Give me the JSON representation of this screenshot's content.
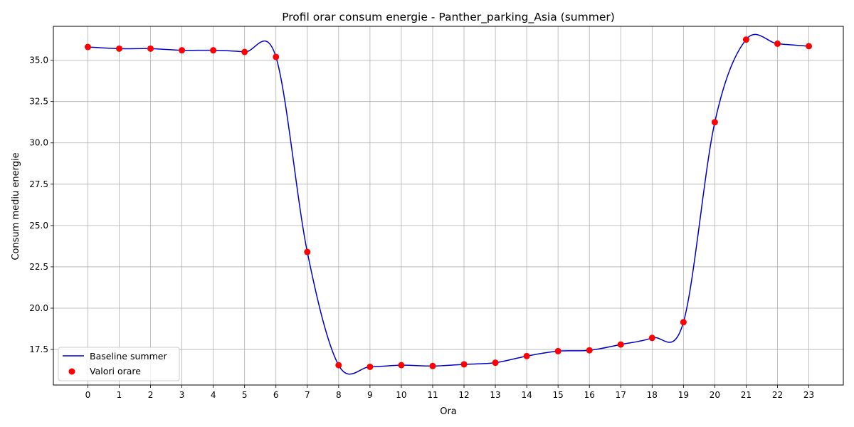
{
  "chart_data": {
    "type": "line",
    "title": "Profil orar consum energie - Panther_parking_Asia (summer)",
    "xlabel": "Ora",
    "ylabel": "Consum mediu energie",
    "xlim": [
      -1.1,
      24.1
    ],
    "ylim": [
      15.35,
      37.05
    ],
    "x_ticks": [
      0,
      1,
      2,
      3,
      4,
      5,
      6,
      7,
      8,
      9,
      10,
      11,
      12,
      13,
      14,
      15,
      16,
      17,
      18,
      19,
      20,
      21,
      22,
      23
    ],
    "y_ticks": [
      17.5,
      20.0,
      22.5,
      25.0,
      27.5,
      30.0,
      32.5,
      35.0
    ],
    "y_tick_labels": [
      "17.5",
      "20.0",
      "22.5",
      "25.0",
      "27.5",
      "30.0",
      "32.5",
      "35.0"
    ],
    "grid": true,
    "legend_position": "lower-left",
    "series": [
      {
        "name": "Baseline summer",
        "kind": "smooth-line",
        "color": "#0000cc",
        "x": [
          0,
          1,
          2,
          3,
          4,
          5,
          6,
          7,
          8,
          9,
          10,
          11,
          12,
          13,
          14,
          15,
          16,
          17,
          18,
          19,
          20,
          21,
          22,
          23
        ],
        "y": [
          35.8,
          35.7,
          35.7,
          35.6,
          35.6,
          35.5,
          35.2,
          23.4,
          16.55,
          16.45,
          16.55,
          16.5,
          16.6,
          16.7,
          17.1,
          17.4,
          17.45,
          17.8,
          18.2,
          19.15,
          31.25,
          36.25,
          36.0,
          35.85
        ]
      },
      {
        "name": "Valori orare",
        "kind": "scatter",
        "color": "#ff0000",
        "x": [
          0,
          1,
          2,
          3,
          4,
          5,
          6,
          7,
          8,
          9,
          10,
          11,
          12,
          13,
          14,
          15,
          16,
          17,
          18,
          19,
          20,
          21,
          22,
          23
        ],
        "y": [
          35.8,
          35.7,
          35.7,
          35.6,
          35.6,
          35.5,
          35.2,
          23.4,
          16.55,
          16.45,
          16.55,
          16.5,
          16.6,
          16.7,
          17.1,
          17.4,
          17.45,
          17.8,
          18.2,
          19.15,
          31.25,
          36.25,
          36.0,
          35.85
        ]
      }
    ]
  }
}
